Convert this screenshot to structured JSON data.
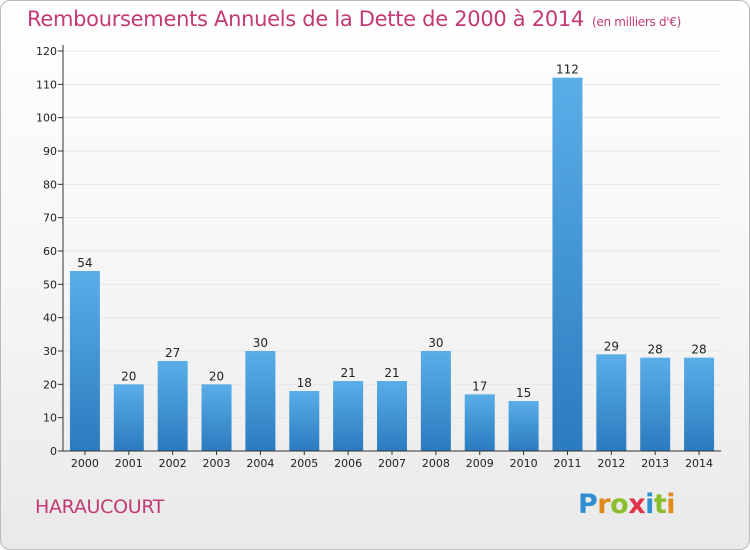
{
  "header": {
    "title": "Remboursements Annuels de la Dette de 2000 à 2014",
    "subtitle": "(en milliers d'€)"
  },
  "footer": {
    "location": "HARAUCOURT",
    "logo": {
      "letters": [
        "P",
        "r",
        "o",
        "x",
        "i",
        "t",
        "i"
      ],
      "colors": [
        "#2f8fd0",
        "#e08a1c",
        "#8cbd2c",
        "#e0344a",
        "#2f8fd0",
        "#8cbd2c",
        "#e08a1c"
      ]
    }
  },
  "colors": {
    "title": "#c23a73",
    "bar_light": "#5aaee8",
    "bar_dark": "#2a7bbf",
    "grid": "#e6e6e6"
  },
  "chart_data": {
    "type": "bar",
    "title": "Remboursements Annuels de la Dette de 2000 à 2014",
    "subtitle": "(en milliers d'€)",
    "categories": [
      "2000",
      "2001",
      "2002",
      "2003",
      "2004",
      "2005",
      "2006",
      "2007",
      "2008",
      "2009",
      "2010",
      "2011",
      "2012",
      "2013",
      "2014"
    ],
    "values": [
      54,
      20,
      27,
      20,
      30,
      18,
      21,
      21,
      30,
      17,
      15,
      112,
      29,
      28,
      28
    ],
    "ylim": [
      0,
      120
    ],
    "yticks": [
      0,
      10,
      20,
      30,
      40,
      50,
      60,
      70,
      80,
      90,
      100,
      110,
      120
    ],
    "grid": true,
    "data_labels": true
  }
}
